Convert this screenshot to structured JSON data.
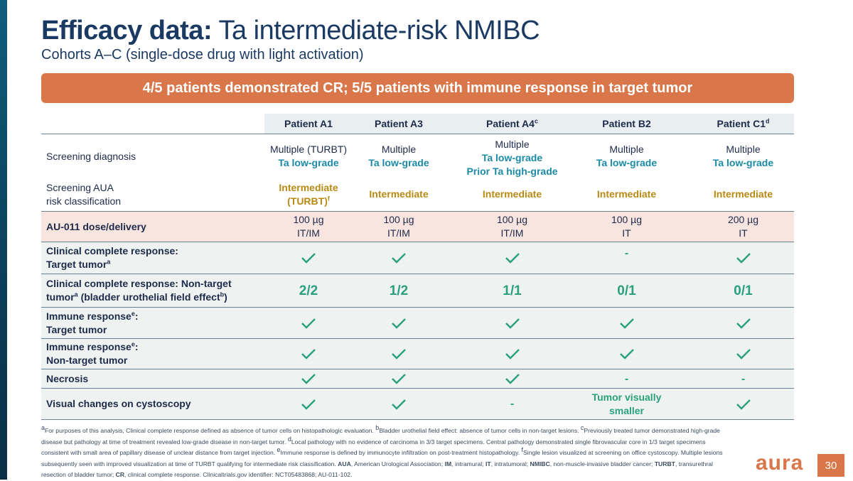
{
  "title_bold": "Efficacy data:",
  "title_rest": " Ta intermediate-risk NMIBC",
  "subtitle": "Cohorts A–C (single-dose drug with light activation)",
  "banner": "4/5 patients demonstrated CR; 5/5 patients with immune response in target tumor",
  "headers": {
    "a1": "Patient A1",
    "a3": "Patient A3",
    "a4": "Patient A4",
    "a4_sup": "c",
    "b2": "Patient B2",
    "c1": "Patient C1",
    "c1_sup": "d"
  },
  "screening": {
    "label": "Screening diagnosis",
    "a1_l1": "Multiple (TURBT)",
    "a1_l2": "Ta low-grade",
    "a3_l1": "Multiple",
    "a3_l2": "Ta low-grade",
    "a4_l1": "Multiple",
    "a4_l2": "Ta low-grade",
    "a4_l3": "Prior Ta high-grade",
    "b2_l1": "Multiple",
    "b2_l2": "Ta low-grade",
    "c1_l1": "Multiple",
    "c1_l2": "Ta low-grade"
  },
  "aua": {
    "label_l1": "Screening AUA",
    "label_l2": "risk classification",
    "a1_l1": "Intermediate",
    "a1_l2": "(TURBT)",
    "a1_sup": "f",
    "a3": "Intermediate",
    "a4": "Intermediate",
    "b2": "Intermediate",
    "c1": "Intermediate"
  },
  "dose": {
    "label": "AU-011 dose/delivery",
    "a1_l1": "100 µg",
    "a1_l2": "IT/IM",
    "a3_l1": "100 µg",
    "a3_l2": "IT/IM",
    "a4_l1": "100 µg",
    "a4_l2": "IT/IM",
    "b2_l1": "100 µg",
    "b2_l2": "IT",
    "c1_l1": "200 µg",
    "c1_l2": "IT"
  },
  "ccr_target": {
    "label_l1": "Clinical complete response:",
    "label_l2": "Target tumor",
    "label_sup": "a",
    "b2": "-"
  },
  "ccr_nontarget": {
    "label_l1": "Clinical complete response: Non-target",
    "label_l2a": "tumor",
    "label_sup_a": "a",
    "label_l2b": " (bladder urothelial field effect",
    "label_sup_b": "b",
    "label_l2c": ")",
    "a1": "2/2",
    "a3": "1/2",
    "a4": "1/1",
    "b2": "0/1",
    "c1": "0/1"
  },
  "immune_target": {
    "label_l1": "Immune response",
    "label_sup": "e",
    "label_colon": ":",
    "label_l2": "Target tumor"
  },
  "immune_nontarget": {
    "label_l1": "Immune response",
    "label_sup": "e",
    "label_colon": ":",
    "label_l2": "Non-target tumor"
  },
  "necrosis": {
    "label": "Necrosis",
    "b2": "-",
    "c1": "-"
  },
  "visual": {
    "label": "Visual changes on cystoscopy",
    "a4": "-",
    "b2_l1": "Tumor visually",
    "b2_l2": "smaller"
  },
  "footnotes": {
    "s_a": "a",
    "t_a": "For purposes of this analysis, Clinical complete response defined as absence of tumor cells on histopathologic evaluation. ",
    "s_b": "b",
    "t_b": "Bladder urothelial field effect: absence of tumor cells in non-target lesions. ",
    "s_c": "c",
    "t_c": "Previously treated tumor demonstrated high-grade disease but pathology at time of treatment revealed low-grade disease in non-target tumor. ",
    "s_d": "d",
    "t_d": "Local pathology with no evidence of carcinoma in 3/3 target specimens.  Central pathology demonstrated single fibrovascular core in 1/3 target specimens consistent with small area of papillary disease of unclear distance from target injection.  ",
    "s_e": "e",
    "t_e": "Immune response is defined by immunocyte infiltration on post-treatment histopathology. ",
    "s_f": "f",
    "t_f": "Single lesion visualized at screening on office cystoscopy.  Multiple lesions subsequently seen with improved visualization at time of TURBT qualifying for intermediate risk classification.  ",
    "abbr_aua": "AUA",
    "t_aua": ", American Urological Association; ",
    "abbr_im": "IM",
    "t_im": ", intramural; ",
    "abbr_it": "IT",
    "t_it": ", intratumoral; ",
    "abbr_nmibc": "NMIBC",
    "t_nmibc": ", non-muscle-invasive bladder cancer; ",
    "abbr_turbt": "TURBT",
    "t_turbt": ", transurethral resection of bladder tumor; ",
    "abbr_cr": "CR",
    "t_cr": ", clinical complete response. Clinicaltrials.gov identifier: NCT05483868; AU-011-102."
  },
  "logo": "aura",
  "page_number": "30",
  "colors": {
    "accent": "#d9774a",
    "teal": "#1b8aa6",
    "green": "#2aa07d",
    "gold": "#b88a12",
    "navy": "#1b3a63"
  }
}
